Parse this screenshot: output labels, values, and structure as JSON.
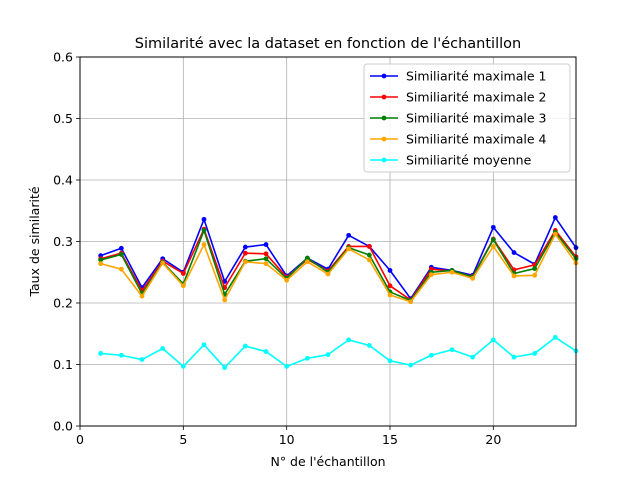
{
  "chart_data": {
    "type": "line",
    "title": "Similarité avec la dataset en fonction de l'échantillon",
    "xlabel": "N° de l'échantillon",
    "ylabel": "Taux de similarité",
    "xlim": [
      0,
      24
    ],
    "ylim": [
      0,
      0.6
    ],
    "xticks": [
      0,
      5,
      10,
      15,
      20
    ],
    "yticks": [
      0.0,
      0.1,
      0.2,
      0.3,
      0.4,
      0.5,
      0.6
    ],
    "xtick_labels": [
      "0",
      "5",
      "10",
      "15",
      "20"
    ],
    "ytick_labels": [
      "0.0",
      "0.1",
      "0.2",
      "0.3",
      "0.4",
      "0.5",
      "0.6"
    ],
    "grid": true,
    "legend_position": "top-right",
    "x": [
      1,
      2,
      3,
      4,
      5,
      6,
      7,
      8,
      9,
      10,
      11,
      12,
      13,
      14,
      15,
      16,
      17,
      18,
      19,
      20,
      21,
      22,
      23,
      24
    ],
    "series": [
      {
        "name": "Similiarité maximale 1",
        "color": "#0000ff",
        "values": [
          0.277,
          0.289,
          0.225,
          0.272,
          0.25,
          0.336,
          0.235,
          0.291,
          0.295,
          0.244,
          0.273,
          0.255,
          0.31,
          0.292,
          0.253,
          0.207,
          0.258,
          0.253,
          0.245,
          0.323,
          0.282,
          0.263,
          0.339,
          0.29
        ]
      },
      {
        "name": "Similiarité maximale 2",
        "color": "#ff0000",
        "values": [
          0.272,
          0.281,
          0.22,
          0.268,
          0.248,
          0.32,
          0.225,
          0.281,
          0.28,
          0.242,
          0.271,
          0.252,
          0.292,
          0.292,
          0.228,
          0.205,
          0.255,
          0.252,
          0.243,
          0.304,
          0.254,
          0.262,
          0.318,
          0.275
        ]
      },
      {
        "name": "Similiarité maximale 3",
        "color": "#008000",
        "values": [
          0.27,
          0.279,
          0.215,
          0.266,
          0.231,
          0.318,
          0.214,
          0.268,
          0.272,
          0.24,
          0.273,
          0.25,
          0.29,
          0.278,
          0.218,
          0.204,
          0.25,
          0.253,
          0.242,
          0.303,
          0.248,
          0.256,
          0.315,
          0.272
        ]
      },
      {
        "name": "Similiarité maximale 4",
        "color": "#ffa500",
        "values": [
          0.264,
          0.255,
          0.211,
          0.265,
          0.228,
          0.295,
          0.205,
          0.267,
          0.264,
          0.237,
          0.267,
          0.247,
          0.288,
          0.27,
          0.213,
          0.202,
          0.246,
          0.25,
          0.24,
          0.292,
          0.244,
          0.245,
          0.312,
          0.265
        ]
      },
      {
        "name": "Similiarité moyenne",
        "color": "#00ffff",
        "values": [
          0.118,
          0.115,
          0.108,
          0.126,
          0.097,
          0.132,
          0.095,
          0.13,
          0.121,
          0.097,
          0.11,
          0.116,
          0.14,
          0.131,
          0.106,
          0.099,
          0.115,
          0.124,
          0.112,
          0.14,
          0.112,
          0.118,
          0.144,
          0.122
        ]
      }
    ]
  }
}
